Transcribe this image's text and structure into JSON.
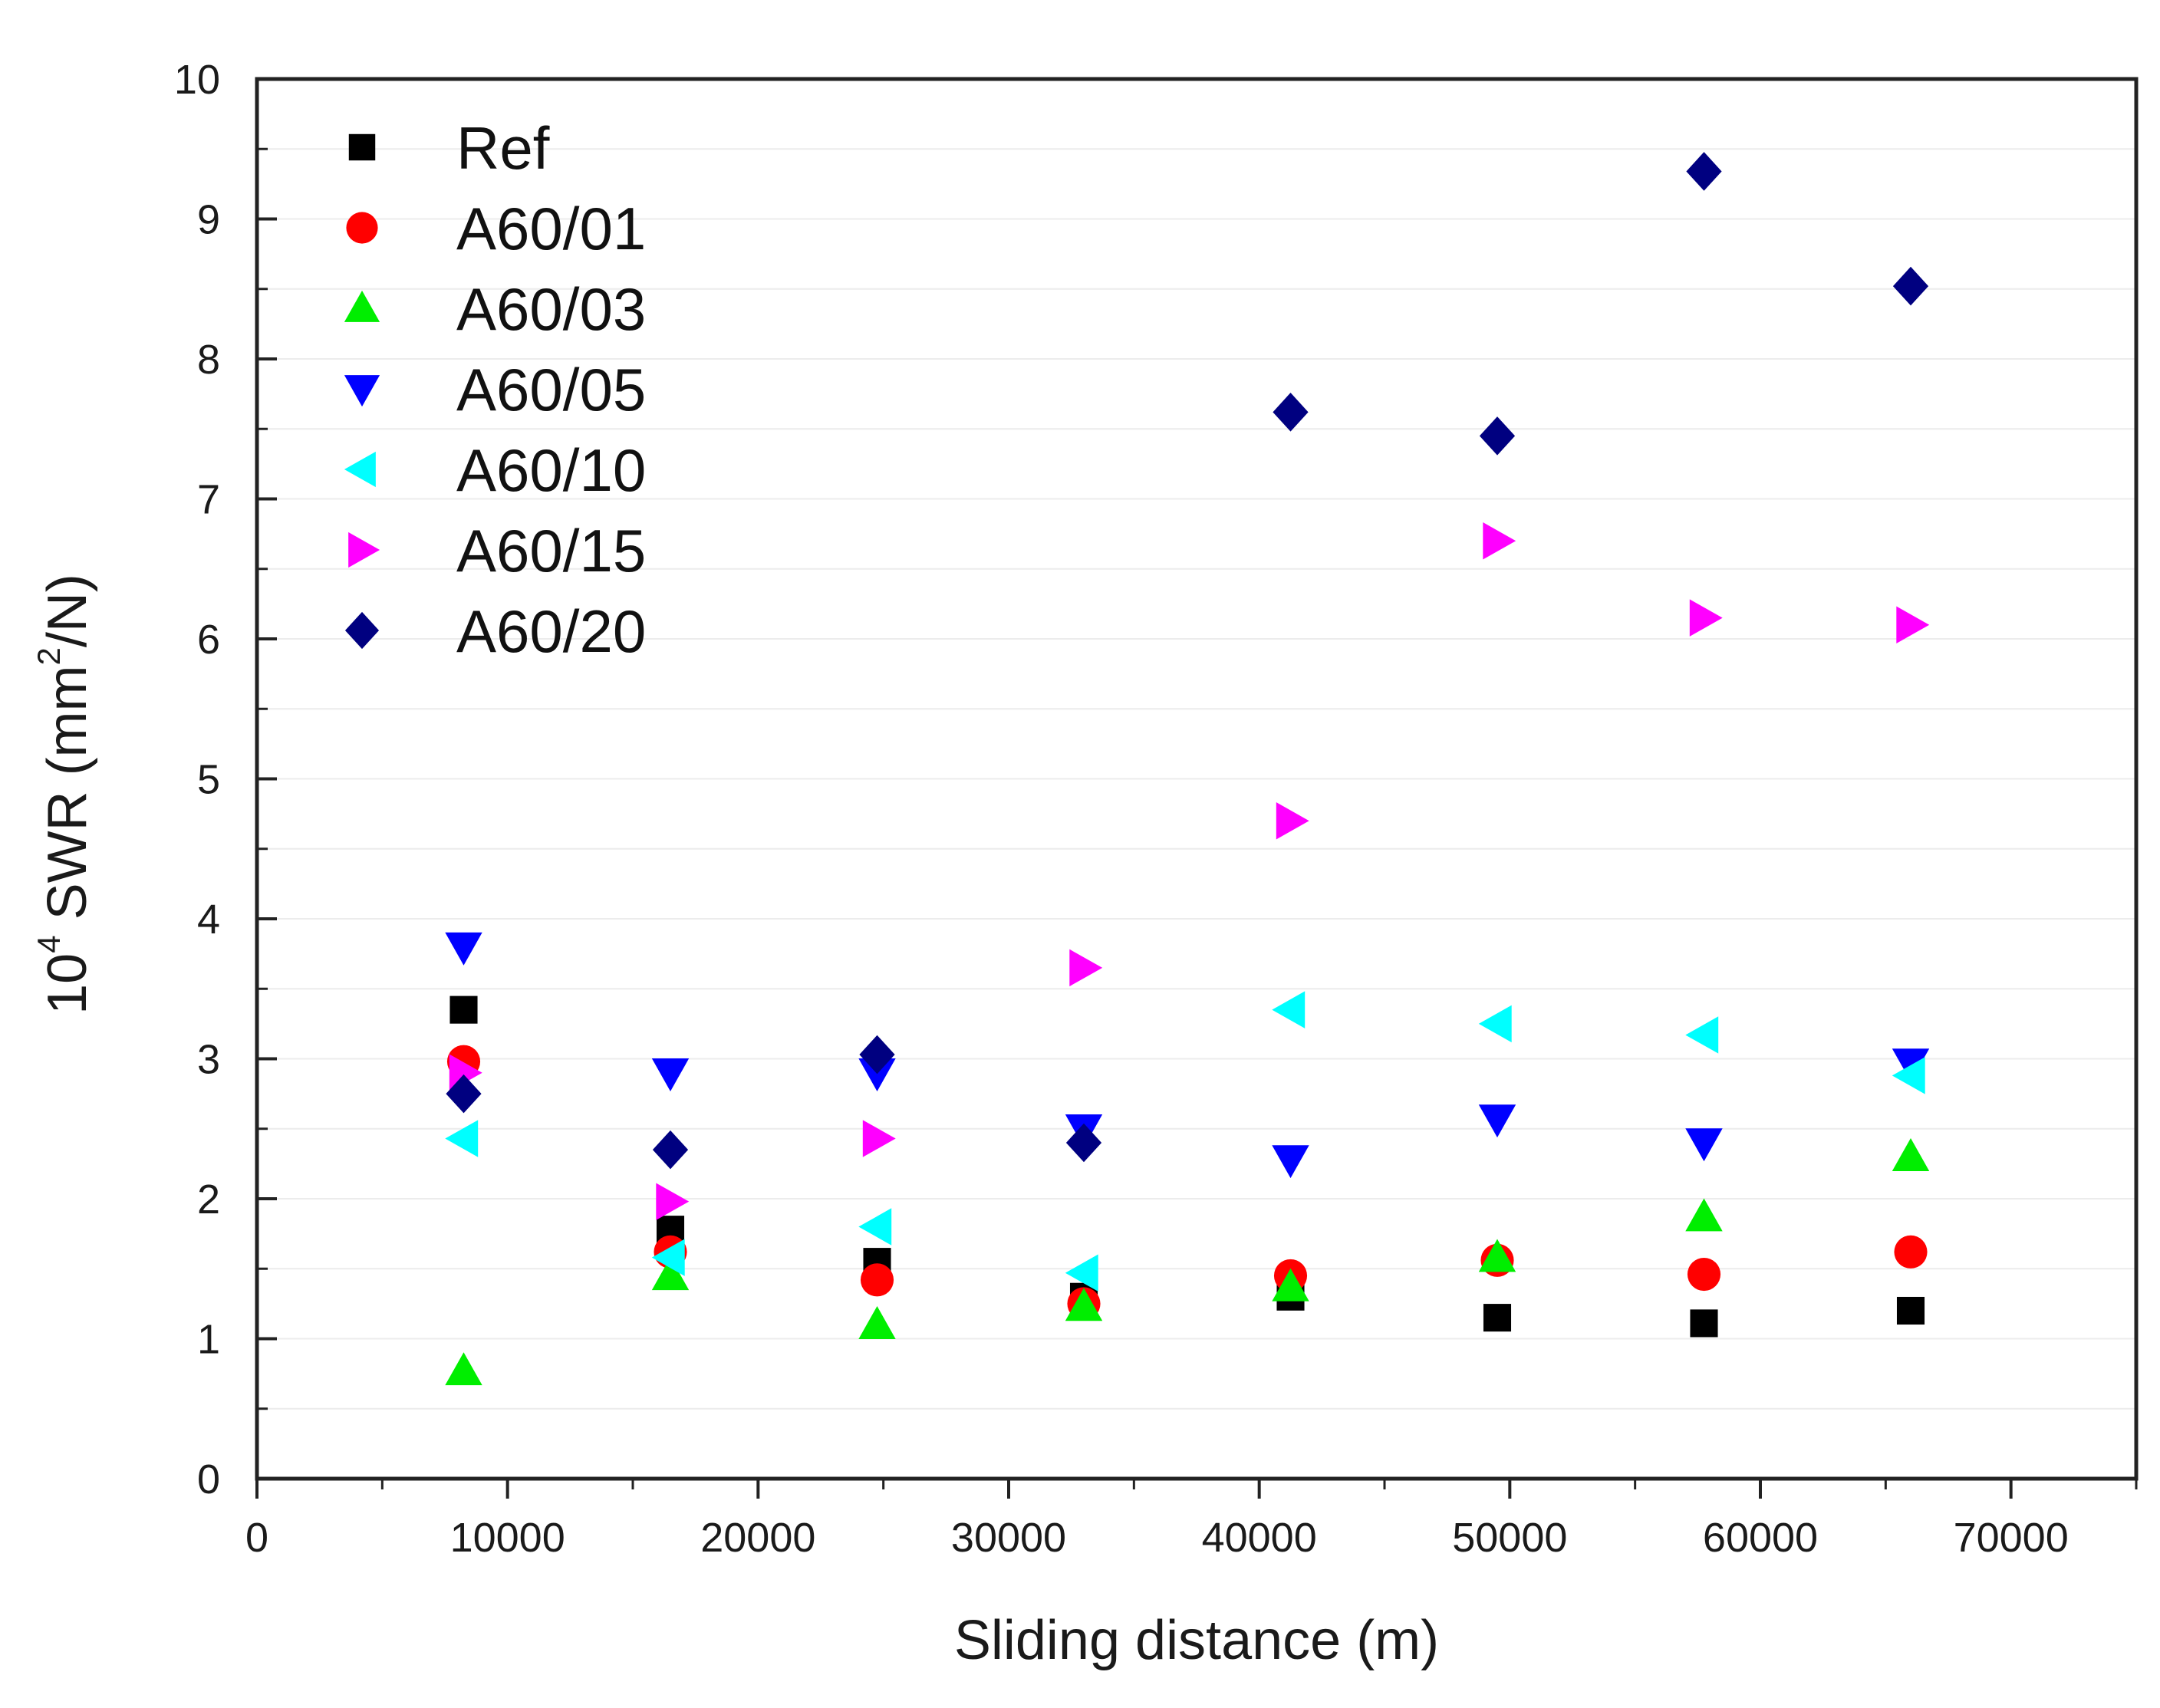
{
  "chart_data": {
    "type": "scatter",
    "title": "",
    "xlabel": "Sliding distance (m)",
    "ylabel_base": "10",
    "ylabel_exp": "4",
    "ylabel_main": " SWR (mm",
    "ylabel_unit_exp": "2",
    "ylabel_tail": "/N)",
    "xlim": [
      0,
      75000
    ],
    "ylim": [
      0,
      10
    ],
    "xticks": [
      0,
      10000,
      20000,
      30000,
      40000,
      50000,
      60000,
      70000
    ],
    "xtick_labels": [
      "0",
      "10000",
      "20000",
      "30000",
      "40000",
      "50000",
      "60000",
      "70000"
    ],
    "yticks": [
      0,
      1,
      2,
      3,
      4,
      5,
      6,
      7,
      8,
      9,
      10
    ],
    "ytick_labels": [
      "0",
      "1",
      "2",
      "3",
      "4",
      "5",
      "6",
      "7",
      "8",
      "9",
      "10"
    ],
    "grid": true,
    "legend_position": "top-left",
    "series": [
      {
        "name": "Ref",
        "marker": "square",
        "color": "#000000",
        "x": [
          8250,
          16500,
          24750,
          33000,
          41250,
          49500,
          57750,
          66000
        ],
        "y": [
          3.35,
          1.78,
          1.55,
          1.3,
          1.3,
          1.15,
          1.11,
          1.2
        ]
      },
      {
        "name": "A60/01",
        "marker": "circle",
        "color": "#ff0000",
        "x": [
          8250,
          16500,
          24750,
          33000,
          41250,
          49500,
          57750,
          66000
        ],
        "y": [
          2.98,
          1.62,
          1.42,
          1.25,
          1.45,
          1.56,
          1.46,
          1.62
        ]
      },
      {
        "name": "A60/03",
        "marker": "triangle-up",
        "color": "#00ee00",
        "x": [
          8250,
          16500,
          24750,
          33000,
          41250,
          49500,
          57750,
          66000
        ],
        "y": [
          0.77,
          1.45,
          1.1,
          1.23,
          1.37,
          1.58,
          1.87,
          2.3
        ]
      },
      {
        "name": "A60/05",
        "marker": "triangle-down",
        "color": "#0000ff",
        "x": [
          8250,
          16500,
          24750,
          33000,
          41250,
          49500,
          57750,
          66000
        ],
        "y": [
          3.8,
          2.9,
          2.9,
          2.5,
          2.28,
          2.57,
          2.4,
          2.97
        ]
      },
      {
        "name": "A60/10",
        "marker": "triangle-left",
        "color": "#00ffff",
        "x": [
          8250,
          16500,
          24750,
          33000,
          41250,
          49500,
          57750,
          66000
        ],
        "y": [
          2.43,
          1.58,
          1.8,
          1.47,
          3.35,
          3.25,
          3.17,
          2.88
        ]
      },
      {
        "name": "A60/15",
        "marker": "triangle-right",
        "color": "#ff00ff",
        "x": [
          8250,
          16500,
          24750,
          33000,
          41250,
          49500,
          57750,
          66000
        ],
        "y": [
          2.9,
          1.98,
          2.43,
          3.65,
          4.7,
          6.7,
          6.15,
          6.1
        ]
      },
      {
        "name": "A60/20",
        "marker": "diamond",
        "color": "#000080",
        "x": [
          8250,
          16500,
          24750,
          33000,
          41250,
          49500,
          57750,
          66000
        ],
        "y": [
          2.75,
          2.35,
          3.03,
          2.4,
          7.62,
          7.45,
          9.34,
          8.52
        ]
      }
    ]
  }
}
